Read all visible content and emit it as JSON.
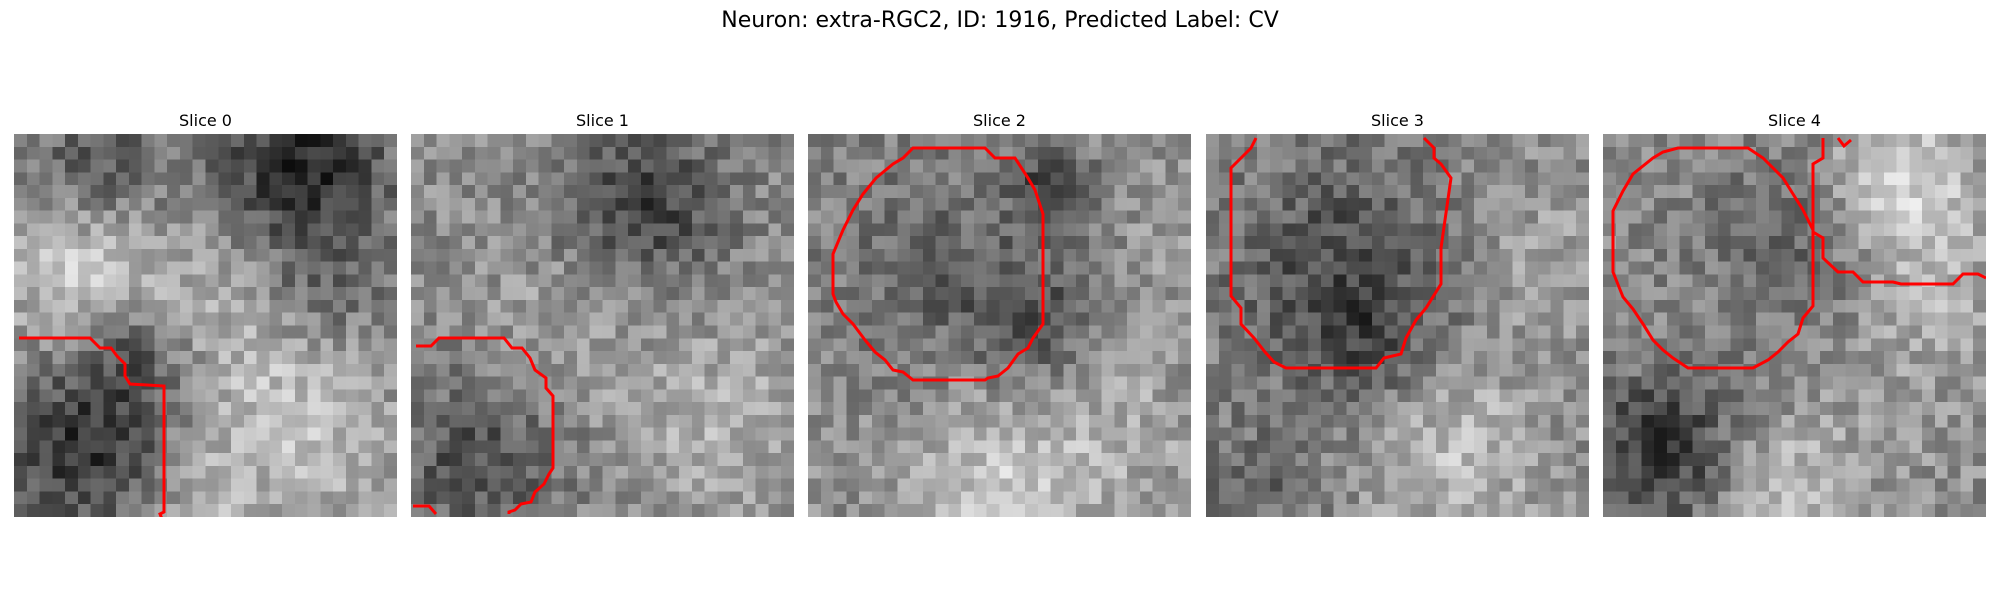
{
  "figure": {
    "title": "Neuron: extra-RGC2, ID: 1916, Predicted Label: CV"
  },
  "colors": {
    "background": "#ffffff",
    "contour": "#ff0000",
    "colormap": "gray"
  },
  "slices": [
    {
      "title": "Slice 0"
    },
    {
      "title": "Slice 1"
    },
    {
      "title": "Slice 2"
    },
    {
      "title": "Slice 3"
    },
    {
      "title": "Slice 4"
    }
  ]
}
